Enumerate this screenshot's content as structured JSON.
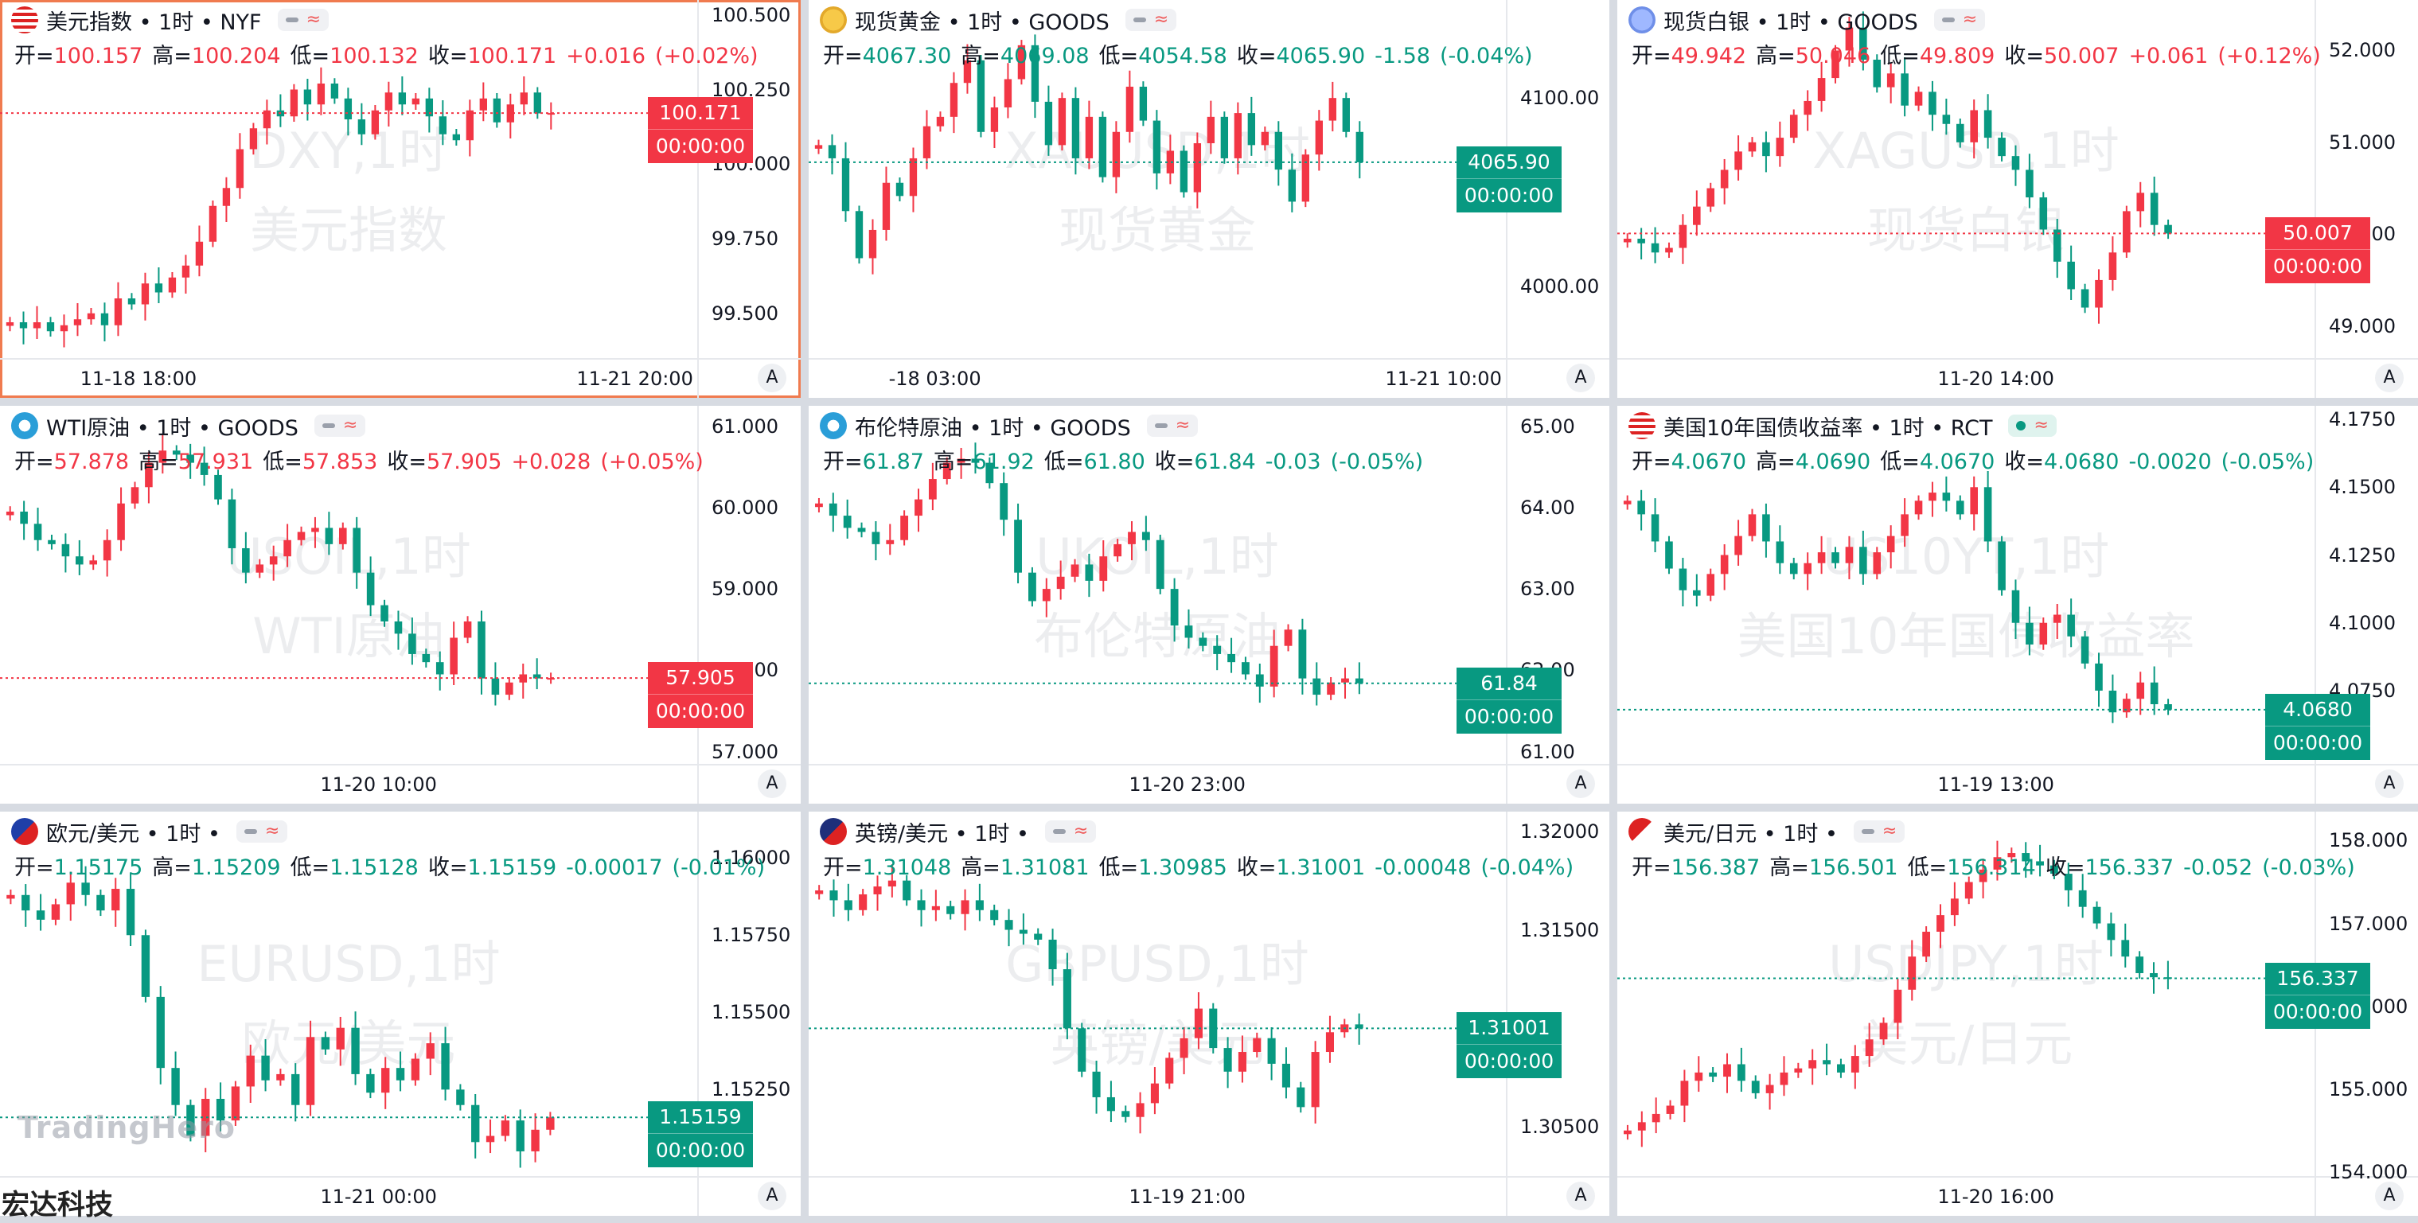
{
  "colors": {
    "up": "#f23645",
    "down": "#089981",
    "selected_border": "#f07b4f"
  },
  "panels": [
    {
      "name": "dxy",
      "title": "美元指数 • 1时 • NYF",
      "flag": "us-flag-icon",
      "ctrl": "normal",
      "selected": true,
      "o": "100.157",
      "h": "100.204",
      "l": "100.132",
      "c": "100.171",
      "chg": "+0.016",
      "pct": "(+0.02%)",
      "dir": "up",
      "watermark1": "DXY,1时",
      "watermark2": "美元指数",
      "y_ticks": [
        "100.500",
        "100.250",
        "100.000",
        "99.750",
        "99.500"
      ],
      "ymin": 99.35,
      "ymax": 100.55,
      "x_labels": [
        "11-18 18:00",
        "11-21 20:00"
      ],
      "tag_time": "00:00:00",
      "candles": "99.47,99.45,99.47,99.44,99.46,99.48,99.50,99.46,99.55,99.53,99.60,99.57,99.62,99.66,99.74,99.86,99.92,100.05,100.12,100.18,100.16,100.25,100.20,100.27,100.22,100.15,100.10,100.18,100.24,100.20,100.22,100.16,100.10,100.08,100.18,100.22,100.14,100.20,100.24,100.17,100.171"
    },
    {
      "name": "xauusd",
      "title": "现货黄金 • 1时 • GOODS",
      "flag": "gold-icon",
      "ctrl": "normal",
      "selected": false,
      "o": "4067.30",
      "h": "4069.08",
      "l": "4054.58",
      "c": "4065.90",
      "chg": "-1.58",
      "pct": "(-0.04%)",
      "dir": "down",
      "watermark1": "XAUUSD,1时",
      "watermark2": "现货黄金",
      "y_ticks": [
        "4100.00",
        "4000.00"
      ],
      "ymin": 3962,
      "ymax": 4152,
      "x_labels": [
        "-18 03:00",
        "11-21 10:00"
      ],
      "tag_time": "00:00:00",
      "candles": "4075,4068,4040,4015,4030,4055,4048,4068,4085,4090,4108,4120,4082,4095,4110,4128,4098,4075,4100,4068,4090,4058,4082,4106,4088,4060,4072,4050,4076,4090,4068,4092,4075,4082,4062,4045,4070,4088,4100,4082,4065.9"
    },
    {
      "name": "xagusd",
      "title": "现货白银 • 1时 • GOODS",
      "flag": "silver-icon",
      "ctrl": "normal",
      "selected": false,
      "o": "49.942",
      "h": "50.046",
      "l": "49.809",
      "c": "50.007",
      "chg": "+0.061",
      "pct": "(+0.12%)",
      "dir": "up",
      "watermark1": "XAGUSD,1时",
      "watermark2": "现货白银",
      "y_ticks": [
        "52.000",
        "51.000",
        "50.000",
        "49.000"
      ],
      "ymin": 48.65,
      "ymax": 52.55,
      "x_labels": [
        "11-20 14:00"
      ],
      "tag_time": "00:00:00",
      "candles": "49.95,49.90,49.80,49.85,50.10,50.30,50.50,50.70,50.90,51.00,50.85,51.05,51.30,51.45,51.70,52.00,52.25,51.90,51.60,51.75,51.40,51.55,51.30,51.20,51.00,51.35,51.05,50.85,50.70,50.40,50.05,49.70,49.40,49.20,49.50,49.80,50.25,50.45,50.10,50.007"
    },
    {
      "name": "usoil",
      "title": "WTI原油 • 1时 • GOODS",
      "flag": "oil-icon",
      "ctrl": "normal",
      "selected": false,
      "o": "57.878",
      "h": "57.931",
      "l": "57.853",
      "c": "57.905",
      "chg": "+0.028",
      "pct": "(+0.05%)",
      "dir": "up",
      "watermark1": "USOIL,1时",
      "watermark2": "WTI原油",
      "y_ticks": [
        "61.000",
        "60.000",
        "59.000",
        "58.000",
        "57.000"
      ],
      "ymin": 56.85,
      "ymax": 61.25,
      "x_labels": [
        "11-20 10:00"
      ],
      "tag_time": "00:00:00",
      "candles": "59.95,59.80,59.60,59.55,59.40,59.30,59.35,59.60,60.05,60.25,60.55,60.70,60.65,60.55,60.40,60.10,59.50,59.20,59.30,59.40,59.60,59.70,59.75,59.55,59.75,59.20,58.80,58.60,58.45,58.20,58.10,57.95,58.40,58.60,57.90,57.70,57.85,57.95,57.90,57.905"
    },
    {
      "name": "ukoil",
      "title": "布伦特原油 • 1时 • GOODS",
      "flag": "oil-icon",
      "ctrl": "normal",
      "selected": false,
      "o": "61.87",
      "h": "61.92",
      "l": "61.80",
      "c": "61.84",
      "chg": "-0.03",
      "pct": "(-0.05%)",
      "dir": "down",
      "watermark1": "UKOIL,1时",
      "watermark2": "布伦特原油",
      "y_ticks": [
        "65.00",
        "64.00",
        "63.00",
        "62.00",
        "61.00"
      ],
      "ymin": 60.85,
      "ymax": 65.25,
      "x_labels": [
        "11-20 23:00"
      ],
      "tag_time": "00:00:00",
      "candles": "64.05,63.90,63.75,63.70,63.55,63.60,63.90,64.10,64.35,64.55,64.60,64.55,64.30,63.85,63.20,62.85,63.00,63.15,63.30,63.10,63.40,63.55,63.70,63.60,63.00,62.55,62.40,62.30,62.20,62.10,61.95,61.80,62.30,62.50,61.90,61.70,61.85,61.90,61.84"
    },
    {
      "name": "us10y",
      "title": "美国10年国债收益率 • 1时 • RCT",
      "flag": "us-flag-icon",
      "ctrl": "on",
      "selected": false,
      "o": "4.0670",
      "h": "4.0690",
      "l": "4.0670",
      "c": "4.0680",
      "chg": "-0.0020",
      "pct": "(-0.05%)",
      "dir": "down",
      "watermark1": "US10YT,1时",
      "watermark2": "美国10年国债收益率",
      "y_ticks": [
        "4.1750",
        "4.1500",
        "4.1250",
        "4.1000",
        "4.0750"
      ],
      "ymin": 4.048,
      "ymax": 4.18,
      "x_labels": [
        "11-19 13:00"
      ],
      "tag_time": "00:00:00",
      "candles": "4.145,4.140,4.130,4.120,4.112,4.110,4.118,4.125,4.132,4.140,4.130,4.122,4.118,4.122,4.126,4.122,4.128,4.118,4.126,4.132,4.140,4.145,4.148,4.145,4.140,4.150,4.130,4.112,4.100,4.092,4.100,4.103,4.095,4.085,4.075,4.067,4.072,4.078,4.070,4.068"
    },
    {
      "name": "eurusd",
      "title": "欧元/美元 • 1时 •",
      "flag": "eu-us-flag-icon",
      "ctrl": "normal",
      "selected": false,
      "o": "1.15175",
      "h": "1.15209",
      "l": "1.15128",
      "c": "1.15159",
      "chg": "-0.00017",
      "pct": "(-0.01%)",
      "dir": "down",
      "watermark1": "EURUSD,1时",
      "watermark2": "欧元/美元",
      "y_ticks": [
        "1.16000",
        "1.15750",
        "1.15500",
        "1.15250"
      ],
      "ymin": 1.1497,
      "ymax": 1.1615,
      "x_labels": [
        "11-21 00:00"
      ],
      "tag_time": "00:00:00",
      "candles": "1.1588,1.1583,1.1580,1.1585,1.1592,1.1588,1.1583,1.1590,1.1575,1.1555,1.1532,1.1520,1.1510,1.1522,1.1515,1.1526,1.1536,1.1528,1.1530,1.1520,1.1542,1.1538,1.1545,1.1530,1.1524,1.1532,1.1528,1.1535,1.1540,1.1525,1.1520,1.1508,1.1510,1.1515,1.1505,1.1512,1.1516"
    },
    {
      "name": "gbpusd",
      "title": "英镑/美元 • 1时 •",
      "flag": "uk-us-flag-icon",
      "ctrl": "normal",
      "selected": false,
      "o": "1.31048",
      "h": "1.31081",
      "l": "1.30985",
      "c": "1.31001",
      "chg": "-0.00048",
      "pct": "(-0.04%)",
      "dir": "down",
      "watermark1": "GBPUSD,1时",
      "watermark2": "英镑/美元",
      "y_ticks": [
        "1.32000",
        "1.31500",
        "1.30500"
      ],
      "ymin": 1.3025,
      "ymax": 1.321,
      "x_labels": [
        "11-19 21:00"
      ],
      "tag_time": "00:00:00",
      "candles": "1.3170,1.3165,1.3160,1.3168,1.3172,1.3175,1.3165,1.3160,1.3162,1.3158,1.3165,1.3160,1.3155,1.3150,1.3148,1.3145,1.3130,1.3100,1.3078,1.3065,1.3058,1.3055,1.3062,1.3072,1.3085,1.3095,1.3110,1.3090,1.3078,1.3088,1.3095,1.3082,1.3070,1.3060,1.3088,1.3098,1.3102,1.3100"
    },
    {
      "name": "usdjpy",
      "title": "美元/日元 • 1时 •",
      "flag": "us-jp-flag-icon",
      "ctrl": "normal",
      "selected": false,
      "o": "156.387",
      "h": "156.501",
      "l": "156.314",
      "c": "156.337",
      "chg": "-0.052",
      "pct": "(-0.03%)",
      "dir": "down",
      "watermark1": "USDJPY,1时",
      "watermark2": "美元/日元",
      "y_ticks": [
        "158.000",
        "157.000",
        "156.000",
        "155.000",
        "154.000"
      ],
      "ymin": 153.95,
      "ymax": 158.35,
      "x_labels": [
        "11-20 16:00"
      ],
      "tag_time": "00:00:00",
      "candles": "154.50,154.60,154.70,154.80,155.10,155.20,155.15,155.30,155.10,154.95,155.05,155.20,155.25,155.35,155.30,155.20,155.40,155.60,155.80,156.20,156.60,156.90,157.10,157.30,157.50,157.65,157.80,157.85,157.75,157.70,157.60,157.40,157.20,157.00,156.80,156.60,156.40,156.35,156.337"
    }
  ],
  "labels": {
    "open": "开=",
    "high": "高=",
    "low": "低=",
    "close": "收=",
    "auto": "A"
  },
  "brand": "TradingHero",
  "corner_text": "宏达科技"
}
